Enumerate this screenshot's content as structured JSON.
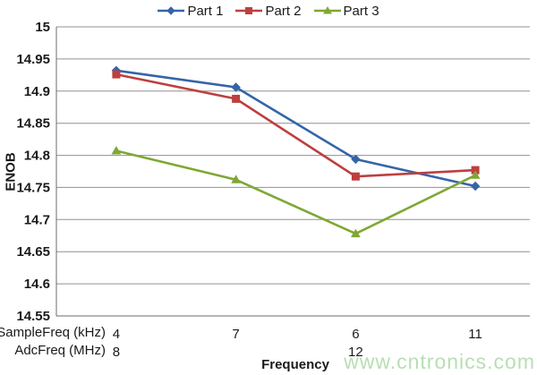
{
  "watermark": {
    "text": "www.cntronics.com",
    "color": "#b7dfb2"
  },
  "chart_data": {
    "type": "line",
    "title": "",
    "xlabel": "Frequency",
    "ylabel": "ENOB",
    "ylim": [
      14.55,
      15
    ],
    "yticks": [
      "15",
      "14.95",
      "14.9",
      "14.85",
      "14.8",
      "14.75",
      "14.7",
      "14.65",
      "14.6",
      "14.55"
    ],
    "grid": true,
    "legend_position": "top-center",
    "x_axis_rows": [
      {
        "label": "SampleFreq (kHz)",
        "values": [
          "4",
          "7",
          "6",
          "11"
        ]
      },
      {
        "label": "AdcFreq (MHz)",
        "values": [
          "8",
          "",
          "12",
          ""
        ]
      }
    ],
    "series": [
      {
        "name": "Part 1",
        "marker": "diamond",
        "color": "#3465A8",
        "values": [
          14.932,
          14.906,
          14.794,
          14.752
        ]
      },
      {
        "name": "Part 2",
        "marker": "square",
        "color": "#BE3F3F",
        "values": [
          14.926,
          14.888,
          14.767,
          14.777
        ]
      },
      {
        "name": "Part 3",
        "marker": "triangle",
        "color": "#7FA733",
        "values": [
          14.807,
          14.762,
          14.678,
          14.769
        ]
      }
    ],
    "axis_color": "#6b6b6b",
    "gridline_color": "#909090",
    "text_color": "#1a1a1a"
  }
}
